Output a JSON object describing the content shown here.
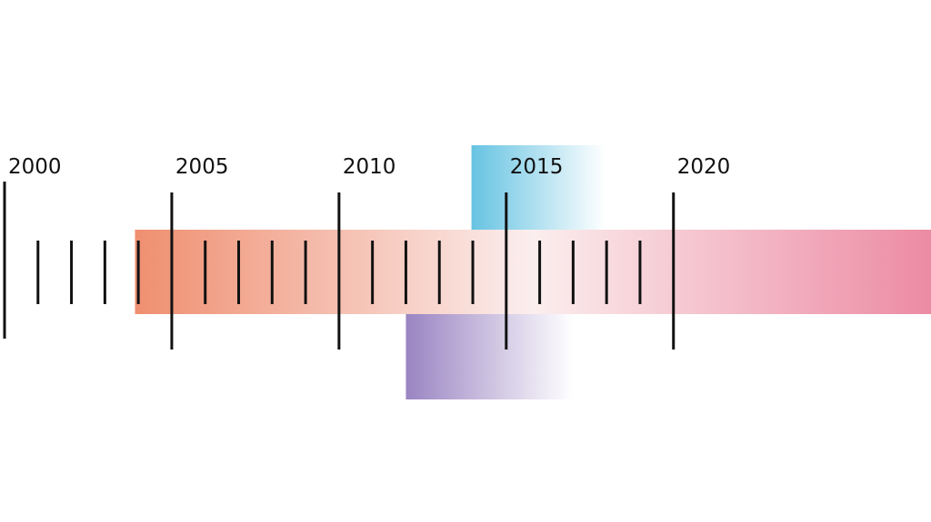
{
  "chart_data": {
    "type": "timeline",
    "xlim": [
      2000,
      2027.7
    ],
    "xticks": [
      2000,
      2005,
      2010,
      2015,
      2020
    ],
    "minor_xticks": [
      2001,
      2002,
      2003,
      2004,
      2006,
      2007,
      2008,
      2009,
      2011,
      2012,
      2013,
      2014,
      2016,
      2017,
      2018,
      2019
    ],
    "series": [
      {
        "colors": [
          "#ef8f70",
          "#fbeeee",
          "#ec8ba3"
        ],
        "values": [
          2003.9,
          2027.7
        ]
      },
      {
        "colors": [
          "#66c3e2",
          "#ffffff"
        ],
        "values": [
          2013.96,
          2017.96
        ]
      },
      {
        "colors": [
          "#9a84c2",
          "#ffffff"
        ],
        "values": [
          2012,
          2017
        ]
      }
    ]
  }
}
